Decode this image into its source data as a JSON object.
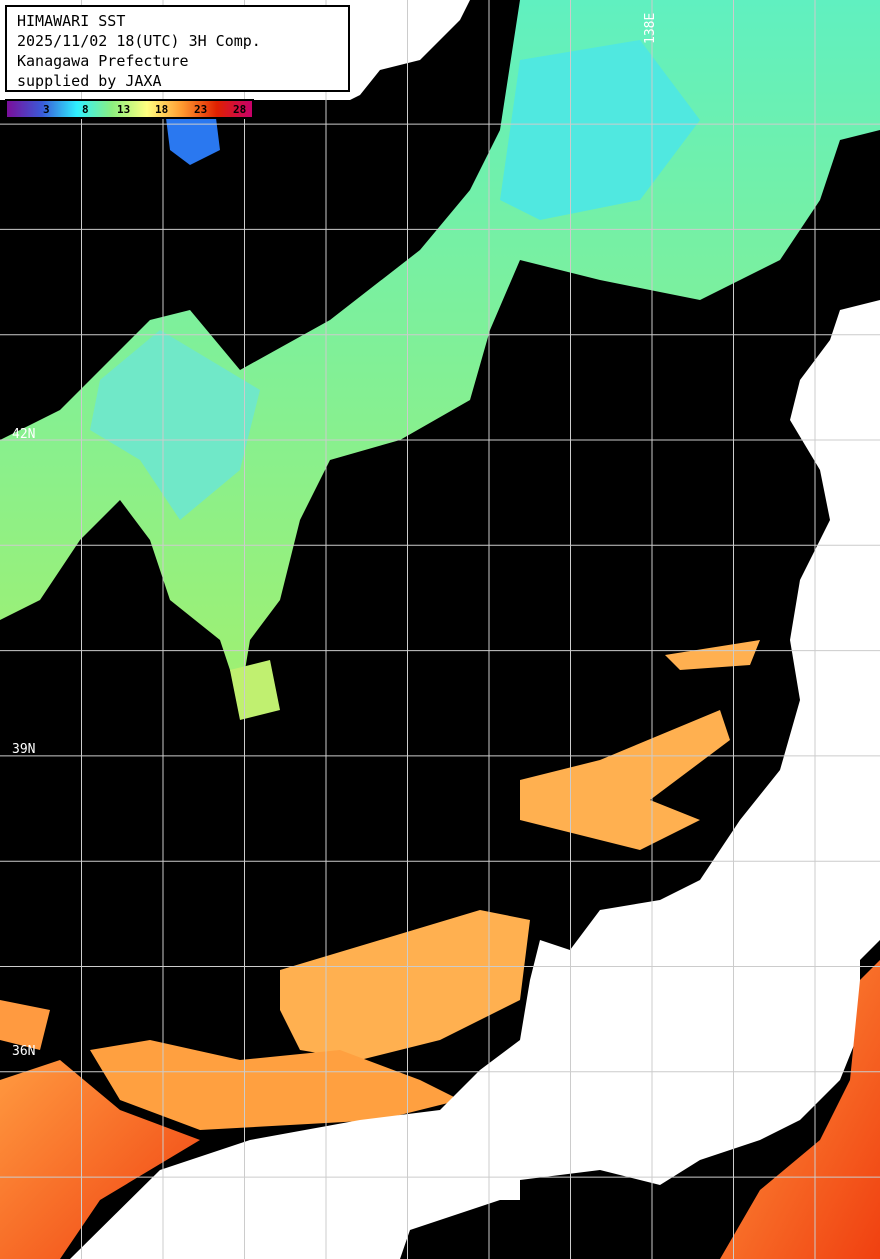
{
  "header": {
    "lines": [
      "HIMAWARI SST",
      "2025/11/02 18(UTC) 3H Comp.",
      "Kanagawa Prefecture",
      "supplied by JAXA"
    ]
  },
  "colorbar": {
    "ticks": [
      "3",
      "8",
      "13",
      "18",
      "23",
      "28"
    ],
    "colors": [
      "#7a0e9a",
      "#3a5ad8",
      "#2ff0ff",
      "#8cf080",
      "#ffff80",
      "#ff9a30",
      "#e02000",
      "#c8006a"
    ]
  },
  "grid": {
    "lat_labels": [
      "42N",
      "39N",
      "36N"
    ],
    "lon_labels": [
      "138E"
    ]
  },
  "colors": {
    "sea_no_data": "#000000",
    "land": "#ffffff",
    "grid": "#cccccc"
  }
}
